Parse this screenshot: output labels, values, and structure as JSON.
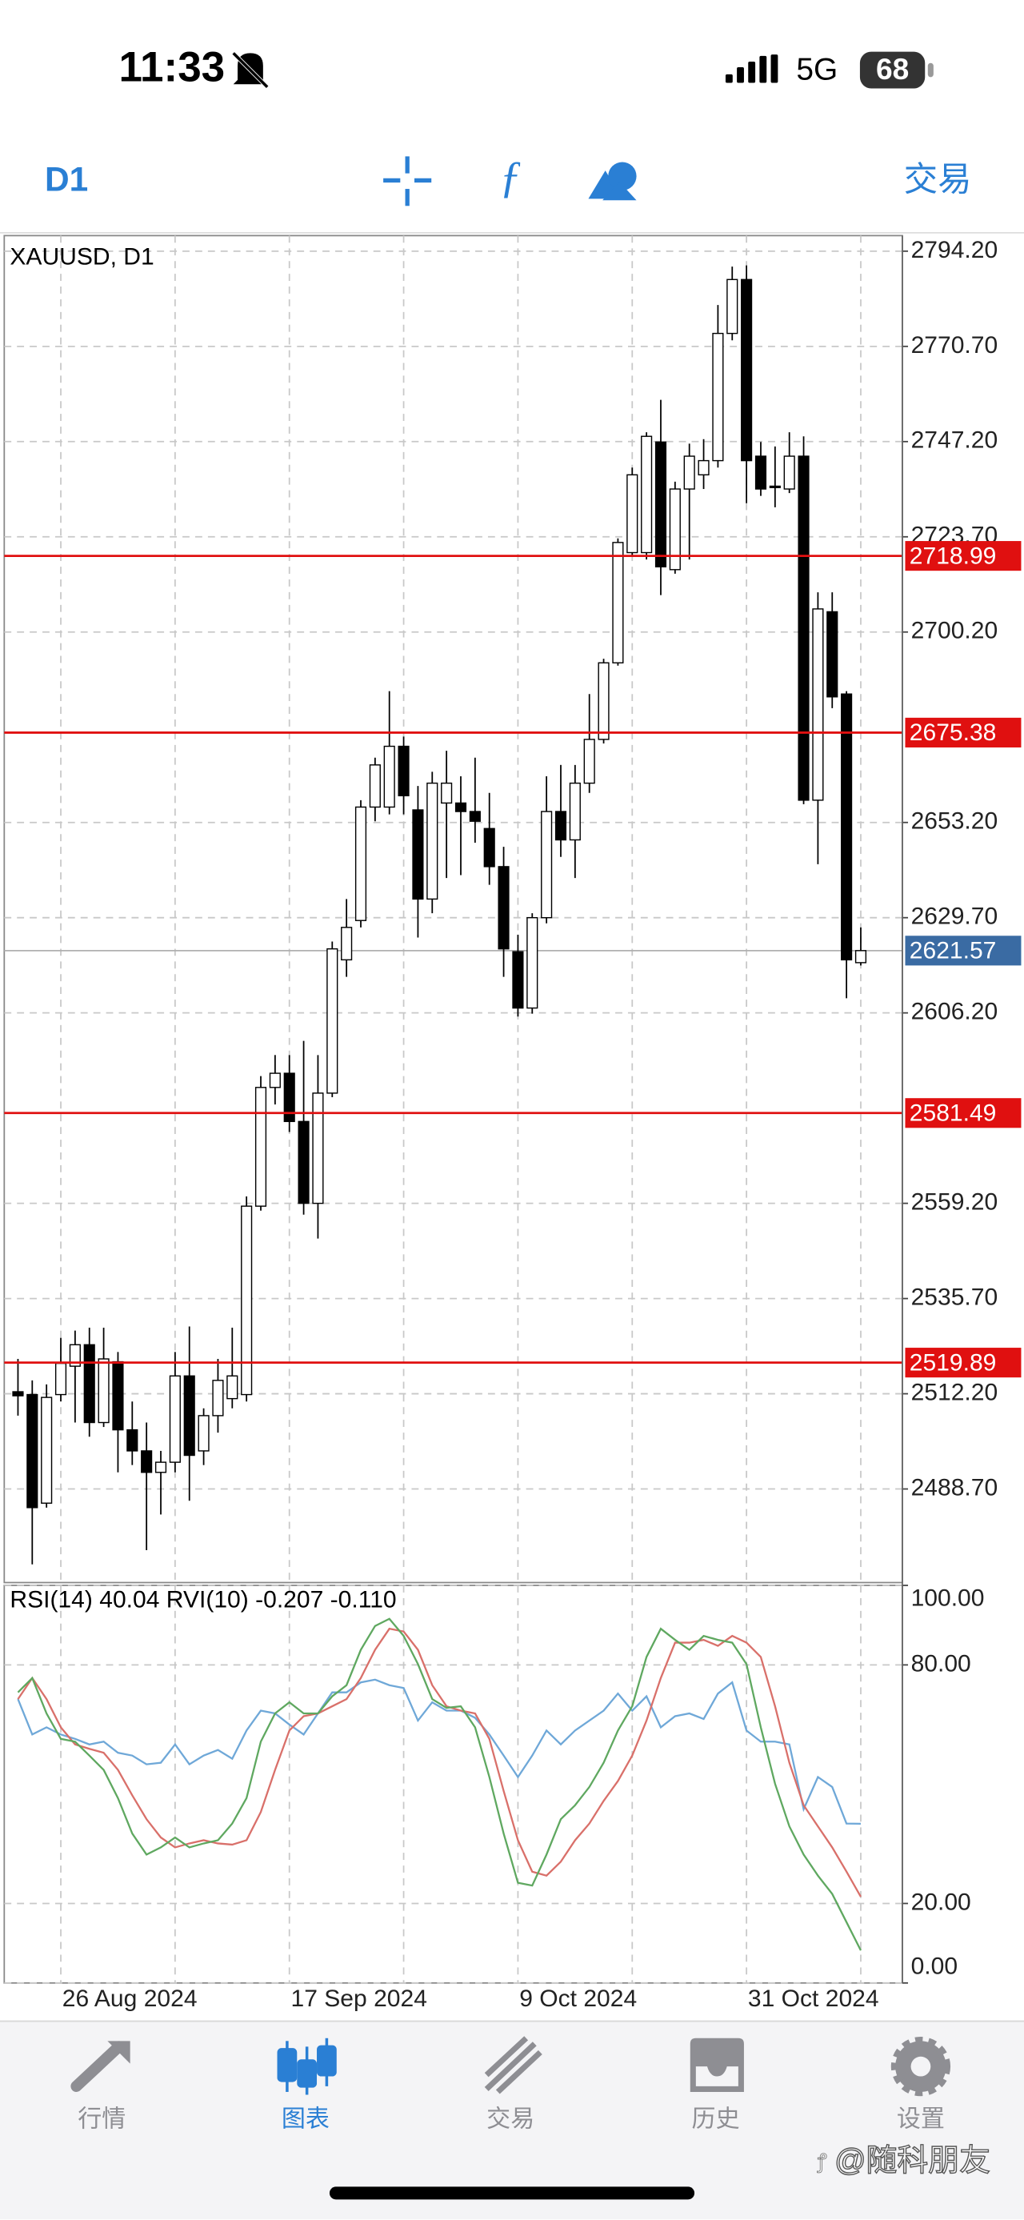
{
  "status_bar": {
    "time": "11:33",
    "network": "5G",
    "battery": "68"
  },
  "toolbar": {
    "timeframe": "D1",
    "trade": "交易"
  },
  "chart_data": [
    {
      "type": "candlestick",
      "title": "XAUUSD, D1",
      "categories": [
        null,
        null,
        null,
        "26 Aug 2024",
        null,
        null,
        null,
        null,
        null,
        null,
        null,
        null,
        null,
        null,
        null,
        null,
        null,
        null,
        null,
        "17 Sep 2024",
        null,
        null,
        null,
        null,
        null,
        null,
        null,
        null,
        null,
        null,
        null,
        null,
        null,
        null,
        null,
        "9 Oct 2024",
        null,
        null,
        null,
        null,
        null,
        null,
        null,
        null,
        null,
        null,
        null,
        null,
        null,
        null,
        null,
        "31 Oct 2024",
        null,
        null,
        null,
        null,
        null,
        null,
        null,
        null
      ],
      "open": [
        2512.7,
        2512.0,
        2485.2,
        2512.0,
        2519.0,
        2524.3,
        2505.1,
        2520.1,
        2503.3,
        2498.1,
        2492.8,
        2495.3,
        2516.6,
        2498.1,
        2506.8,
        2511.0,
        2512.0,
        2558.5,
        2587.8,
        2591.3,
        2579.4,
        2559.2,
        2586.4,
        2619.3,
        2629.0,
        2657.0,
        2657.0,
        2672.0,
        2656.3,
        2634.3,
        2658.0,
        2658.0,
        2655.9,
        2651.7,
        2642.3,
        2621.3,
        2607.4,
        2629.7,
        2655.9,
        2648.9,
        2662.9,
        2673.7,
        2692.6,
        2719.8,
        2719.8,
        2747.1,
        2715.6,
        2735.5,
        2739.0,
        2742.5,
        2773.9,
        2787.2,
        2743.6,
        2736.2,
        2735.5,
        2743.6,
        2658.7,
        2705.2,
        2684.9,
        2618.6
      ],
      "high": [
        2520.8,
        2515.5,
        2514.5,
        2526.0,
        2527.8,
        2528.5,
        2528.5,
        2522.5,
        2510.3,
        2505.1,
        2498.1,
        2522.5,
        2528.8,
        2508.6,
        2520.8,
        2528.5,
        2560.9,
        2590.6,
        2595.8,
        2595.8,
        2599.3,
        2595.8,
        2623.8,
        2634.3,
        2658.7,
        2669.2,
        2685.6,
        2674.4,
        2662.2,
        2665.7,
        2670.9,
        2664.6,
        2669.2,
        2660.5,
        2647.2,
        2625.5,
        2630.8,
        2664.6,
        2667.4,
        2667.4,
        2684.9,
        2693.6,
        2723.3,
        2740.8,
        2749.5,
        2757.5,
        2737.3,
        2746.7,
        2747.8,
        2780.9,
        2790.4,
        2790.7,
        2747.1,
        2746.0,
        2749.5,
        2748.5,
        2710.0,
        2710.0,
        2685.6,
        2627.3
      ],
      "low": [
        2506.8,
        2470.1,
        2484.1,
        2510.3,
        2505.1,
        2501.6,
        2504.0,
        2492.8,
        2494.6,
        2473.6,
        2482.4,
        2492.8,
        2485.8,
        2494.6,
        2502.6,
        2508.6,
        2510.3,
        2557.4,
        2583.6,
        2576.8,
        2556.4,
        2550.5,
        2585.4,
        2615.1,
        2627.3,
        2653.5,
        2655.2,
        2655.2,
        2624.8,
        2630.8,
        2639.5,
        2640.2,
        2648.2,
        2637.8,
        2615.1,
        2605.3,
        2606.0,
        2628.3,
        2644.7,
        2639.5,
        2660.5,
        2672.7,
        2691.9,
        2719.1,
        2718.1,
        2709.3,
        2714.6,
        2718.1,
        2735.5,
        2740.8,
        2772.2,
        2732.0,
        2733.8,
        2731.0,
        2734.5,
        2657.7,
        2642.9,
        2681.4,
        2609.8,
        2617.9
      ],
      "close": [
        2511.7,
        2484.1,
        2511.3,
        2519.7,
        2524.3,
        2505.1,
        2520.8,
        2503.3,
        2498.1,
        2492.8,
        2495.3,
        2516.6,
        2497.0,
        2506.8,
        2515.5,
        2516.6,
        2558.5,
        2587.8,
        2591.3,
        2579.4,
        2559.2,
        2586.4,
        2622.0,
        2627.3,
        2657.0,
        2667.4,
        2672.0,
        2659.8,
        2634.3,
        2662.9,
        2662.9,
        2655.9,
        2653.5,
        2642.3,
        2622.0,
        2607.4,
        2629.7,
        2655.9,
        2648.9,
        2662.9,
        2673.7,
        2692.6,
        2722.3,
        2739.0,
        2748.5,
        2716.3,
        2735.5,
        2743.6,
        2742.5,
        2773.9,
        2787.2,
        2742.5,
        2735.5,
        2735.9,
        2743.6,
        2658.7,
        2705.9,
        2684.2,
        2619.3,
        2621.57
      ],
      "up_color": "#ffffff",
      "down_color": "#000000",
      "outline_color": "#000000",
      "ylim": [
        2465.6,
        2798.04
      ],
      "yticks": [
        {
          "value": 2794.2,
          "label": "2794.20"
        },
        {
          "value": 2770.7,
          "label": "2770.70"
        },
        {
          "value": 2747.2,
          "label": "2747.20"
        },
        {
          "value": 2723.7,
          "label": "2723.70"
        },
        {
          "value": 2700.2,
          "label": "2700.20"
        },
        {
          "value": 2653.2,
          "label": "2653.20"
        },
        {
          "value": 2629.7,
          "label": "2629.70"
        },
        {
          "value": 2606.2,
          "label": "2606.20"
        },
        {
          "value": 2559.2,
          "label": "2559.20"
        },
        {
          "value": 2535.7,
          "label": "2535.70"
        },
        {
          "value": 2512.2,
          "label": "2512.20"
        },
        {
          "value": 2488.7,
          "label": "2488.70"
        }
      ],
      "grid": true,
      "levels": [
        2718.99,
        2675.38,
        2581.49,
        2519.89
      ],
      "level_color": "#e01010",
      "current_price": 2621.57,
      "current_price_color": "#3a6ba3"
    },
    {
      "type": "line",
      "title": "RSI(14) 40.04 RVI(10) -0.207 -0.110",
      "ylim": [
        0,
        100
      ],
      "yticks": [
        {
          "value": 100,
          "label": "100.00"
        },
        {
          "value": 80,
          "label": "80.00"
        },
        {
          "value": 20,
          "label": "20.00"
        },
        {
          "value": 0,
          "label": "0.00"
        }
      ],
      "grid": true,
      "series": [
        {
          "color": "#6fa8d8",
          "values": [
            71.4,
            62.5,
            64.3,
            62.5,
            61.4,
            60.0,
            60.7,
            57.9,
            57.2,
            55.0,
            55.4,
            60.0,
            55.0,
            57.2,
            58.6,
            56.4,
            63.5,
            68.5,
            67.8,
            65.0,
            62.5,
            67.8,
            73.1,
            73.1,
            75.6,
            76.3,
            74.9,
            74.2,
            66.0,
            70.6,
            68.5,
            68.5,
            66.7,
            62.5,
            57.2,
            51.8,
            57.2,
            63.5,
            60.0,
            63.5,
            66.0,
            68.5,
            72.8,
            68.5,
            72.1,
            64.3,
            67.1,
            67.8,
            66.4,
            72.8,
            75.6,
            63.5,
            60.7,
            60.7,
            60.0,
            43.7,
            51.8,
            49.3,
            40.1,
            40.04
          ]
        },
        {
          "color": "#d9706a",
          "values": [
            71.4,
            76.7,
            71.4,
            64.3,
            60.0,
            58.9,
            57.9,
            53.6,
            47.2,
            41.2,
            36.6,
            34.1,
            35.1,
            35.9,
            35.1,
            34.8,
            35.9,
            43.0,
            53.6,
            63.5,
            67.1,
            67.8,
            69.6,
            71.4,
            76.7,
            83.8,
            89.1,
            88.4,
            83.8,
            74.9,
            69.6,
            68.5,
            67.8,
            61.4,
            48.3,
            35.9,
            28.0,
            27.0,
            30.5,
            35.9,
            40.1,
            45.8,
            50.8,
            57.2,
            66.0,
            76.7,
            85.6,
            85.6,
            86.3,
            84.8,
            87.3,
            85.6,
            82.0,
            69.6,
            55.4,
            44.7,
            39.4,
            34.1,
            28.0,
            21.7
          ]
        },
        {
          "color": "#5fa860",
          "values": [
            73.1,
            76.7,
            67.8,
            61.4,
            60.7,
            57.2,
            53.6,
            46.5,
            37.6,
            32.3,
            34.1,
            36.6,
            34.1,
            35.1,
            35.9,
            40.1,
            46.5,
            60.7,
            67.8,
            70.6,
            67.8,
            67.8,
            72.1,
            74.9,
            83.8,
            89.8,
            91.6,
            87.3,
            80.2,
            71.4,
            69.2,
            69.6,
            64.3,
            51.8,
            37.6,
            25.2,
            24.5,
            32.3,
            41.2,
            44.7,
            49.3,
            55.4,
            63.5,
            69.6,
            82.0,
            89.1,
            86.3,
            83.8,
            87.3,
            86.3,
            85.6,
            80.2,
            64.3,
            50.1,
            39.4,
            32.3,
            27.0,
            22.4,
            15.3,
            8.2
          ]
        }
      ]
    }
  ],
  "tab_bar": {
    "tabs": [
      "行情",
      "图表",
      "交易",
      "历史",
      "设置"
    ]
  },
  "watermark": "@随科朋友"
}
